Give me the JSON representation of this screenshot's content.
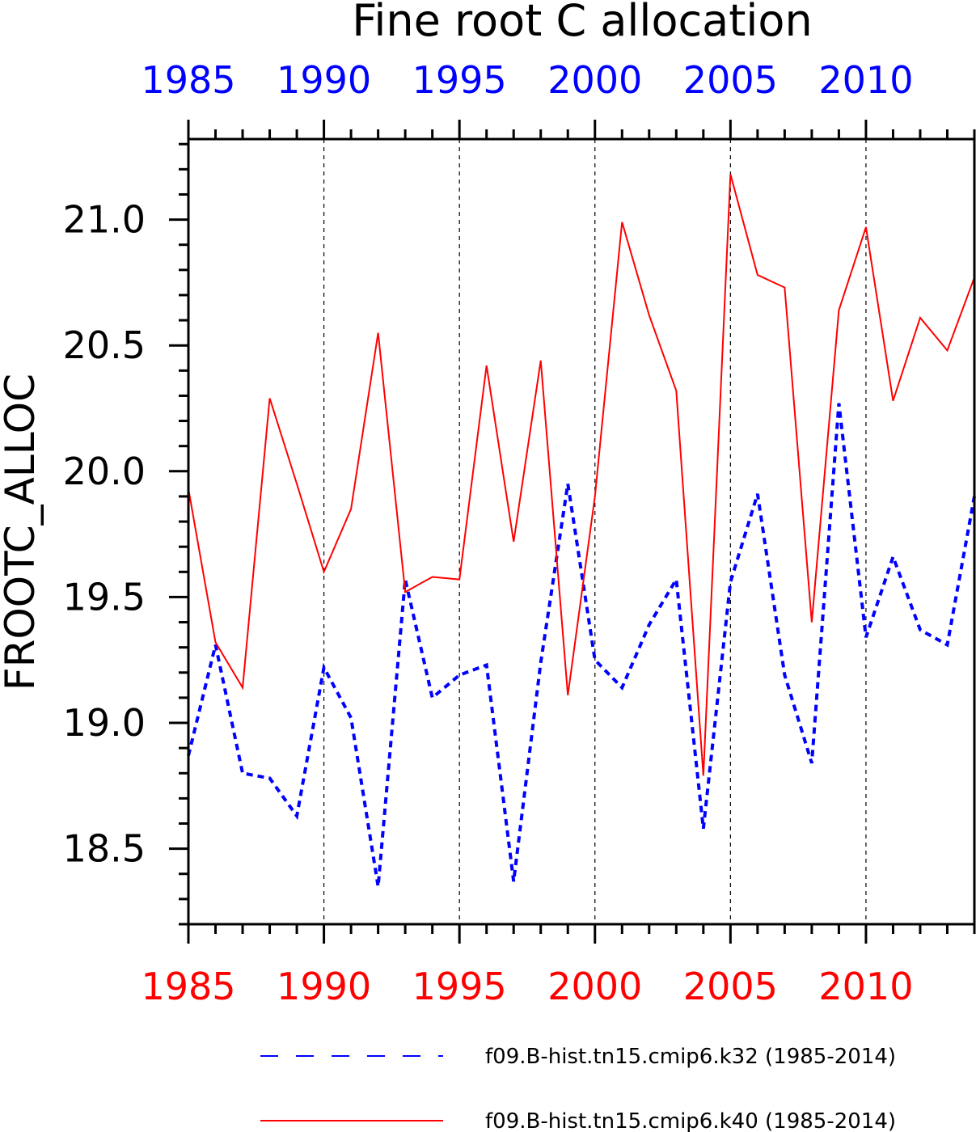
{
  "chart_data": {
    "type": "line",
    "title": "Fine root C allocation",
    "ylabel": "FROOTC_ALLOC",
    "xlabel": "",
    "xlim": [
      1985,
      2014
    ],
    "ylim": [
      18.2,
      21.32
    ],
    "x_ticks": [
      "1985",
      "1990",
      "1995",
      "2000",
      "2005",
      "2010"
    ],
    "y_ticks": [
      "18.5",
      "19.0",
      "19.5",
      "20.0",
      "20.5",
      "21.0"
    ],
    "top_axis_color": "#0000ff",
    "bottom_axis_color": "#ff0000",
    "grid": "vertical dashed at major x ticks",
    "legend_position": "bottom",
    "x": [
      1985,
      1986,
      1987,
      1988,
      1989,
      1990,
      1991,
      1992,
      1993,
      1994,
      1995,
      1996,
      1997,
      1998,
      1999,
      2000,
      2001,
      2002,
      2003,
      2004,
      2005,
      2006,
      2007,
      2008,
      2009,
      2010,
      2011,
      2012,
      2013,
      2014
    ],
    "series": [
      {
        "name": "f09.B-hist.tn15.cmip6.k32 (1985-2014)",
        "color": "#0000ff",
        "style": "dashed",
        "values": [
          18.87,
          19.31,
          18.8,
          18.78,
          18.63,
          19.22,
          19.02,
          18.35,
          19.57,
          19.1,
          19.19,
          19.23,
          18.37,
          19.24,
          19.95,
          19.25,
          19.14,
          19.39,
          19.57,
          18.58,
          19.56,
          19.91,
          19.19,
          18.84,
          20.27,
          19.34,
          19.66,
          19.37,
          19.31,
          19.9
        ]
      },
      {
        "name": "f09.B-hist.tn15.cmip6.k40 (1985-2014)",
        "color": "#ff0000",
        "style": "solid",
        "values": [
          19.93,
          19.32,
          19.14,
          20.29,
          19.95,
          19.6,
          19.85,
          20.55,
          19.52,
          19.58,
          19.57,
          20.42,
          19.72,
          20.44,
          19.11,
          19.9,
          20.99,
          20.62,
          20.32,
          18.79,
          21.18,
          20.78,
          20.73,
          19.4,
          20.64,
          20.97,
          20.28,
          20.61,
          20.48,
          20.77
        ]
      }
    ]
  }
}
